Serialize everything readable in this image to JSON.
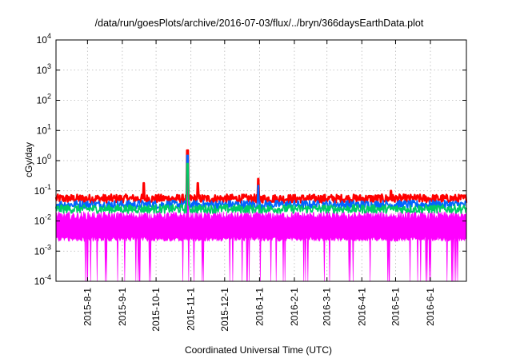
{
  "chart_data": {
    "type": "line",
    "title": "/data/run/goesPlots/archive/2016-07-03/flux/../bryn/366daysEarthData.plot",
    "xlabel": "Coordinated Universal Time (UTC)",
    "ylabel": "cGy/day",
    "x_range": [
      "2015-07-04",
      "2016-07-03"
    ],
    "yscale": "log",
    "ylim": [
      0.0001,
      10000
    ],
    "grid": true,
    "x_ticks": [
      "2015-8-1",
      "2015-9-1",
      "2015-10-1",
      "2015-11-1",
      "2015-12-1",
      "2016-1-1",
      "2016-2-1",
      "2016-3-1",
      "2016-4-1",
      "2016-5-1",
      "2016-6-1"
    ],
    "y_ticks": [
      {
        "value": 0.0001,
        "mantissa": "10",
        "exponent": "-4"
      },
      {
        "value": 0.001,
        "mantissa": "10",
        "exponent": "-3"
      },
      {
        "value": 0.01,
        "mantissa": "10",
        "exponent": "-2"
      },
      {
        "value": 0.1,
        "mantissa": "10",
        "exponent": "-1"
      },
      {
        "value": 1,
        "mantissa": "10",
        "exponent": "0"
      },
      {
        "value": 10,
        "mantissa": "10",
        "exponent": "1"
      },
      {
        "value": 100,
        "mantissa": "10",
        "exponent": "2"
      },
      {
        "value": 1000,
        "mantissa": "10",
        "exponent": "3"
      },
      {
        "value": 10000,
        "mantissa": "10",
        "exponent": "4"
      }
    ],
    "series": [
      {
        "color": "#ff0000",
        "baseline": 0.055,
        "spikes": [
          {
            "x": "2015-09-20",
            "y": 0.18
          },
          {
            "x": "2015-10-29",
            "y": 2.2
          },
          {
            "x": "2015-11-07",
            "y": 0.18
          },
          {
            "x": "2015-12-31",
            "y": 0.25
          },
          {
            "x": "2016-04-27",
            "y": 0.1
          }
        ]
      },
      {
        "color": "#0066ff",
        "baseline": 0.035,
        "spikes": [
          {
            "x": "2015-10-29",
            "y": 1.5
          },
          {
            "x": "2015-12-31",
            "y": 0.15
          }
        ]
      },
      {
        "color": "#00cc66",
        "baseline": 0.025,
        "spikes": [
          {
            "x": "2015-10-29",
            "y": 0.8
          }
        ]
      },
      {
        "color": "#ff00ff",
        "baseline": 0.015,
        "floor": 0.0025,
        "min": 0.0001,
        "spikes": [
          {
            "x": "2015-10-29",
            "y": 0.25
          }
        ]
      }
    ]
  }
}
